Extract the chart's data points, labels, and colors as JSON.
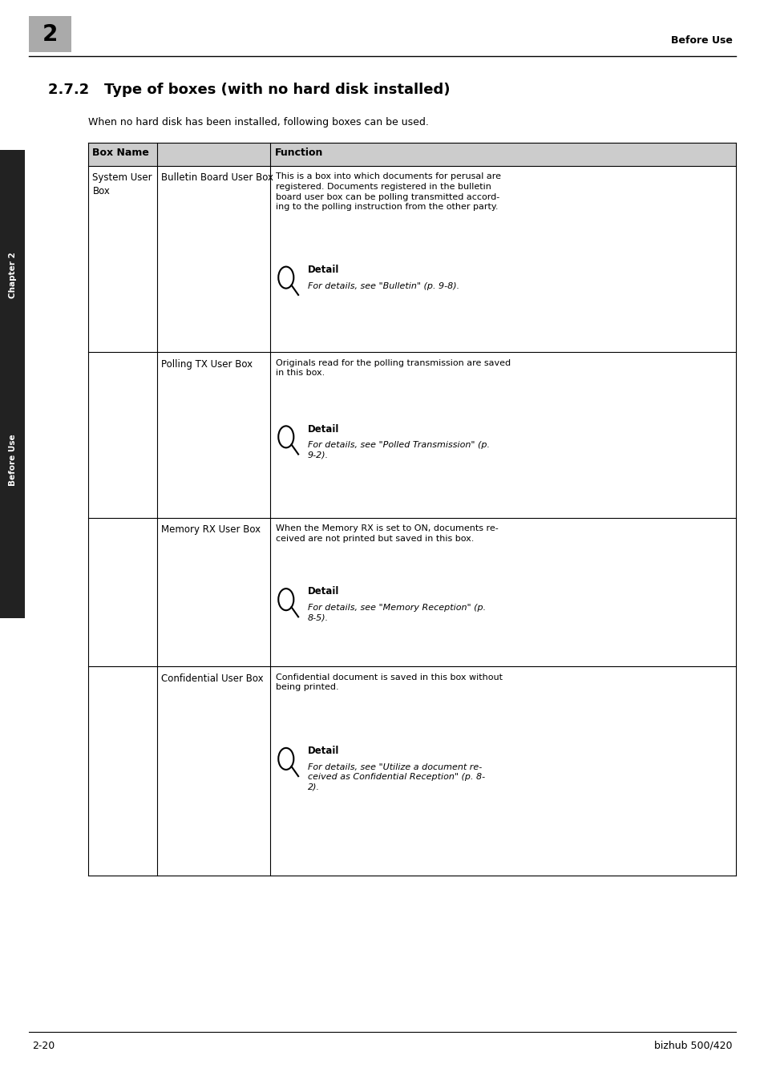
{
  "page_number": "2-20",
  "footer_right": "bizhub 500/420",
  "header_right": "Before Use",
  "chapter_num": "2",
  "section_title": "2.7.2   Type of boxes (with no hard disk installed)",
  "intro_text": "When no hard disk has been installed, following boxes can be used.",
  "col1_header": "Box Name",
  "col2_header": "Function",
  "sidebar_text": "Before Use",
  "sidebar_chapter": "Chapter 2",
  "rows": [
    {
      "col1a": "System User\nBox",
      "col1b": "Bulletin Board User Box",
      "col2_text": "This is a box into which documents for perusal are\nregistered. Documents registered in the bulletin\nboard user box can be polling transmitted accord-\ning to the polling instruction from the other party.",
      "detail_label": "Detail",
      "detail_ref": "For details, see \"Bulletin\" (p. 9-8)."
    },
    {
      "col1a": "",
      "col1b": "Polling TX User Box",
      "col2_text": "Originals read for the polling transmission are saved\nin this box.",
      "detail_label": "Detail",
      "detail_ref": "For details, see \"Polled Transmission\" (p.\n9-2)."
    },
    {
      "col1a": "",
      "col1b": "Memory RX User Box",
      "col2_text": "When the Memory RX is set to ON, documents re-\nceived are not printed but saved in this box.",
      "detail_label": "Detail",
      "detail_ref": "For details, see \"Memory Reception\" (p.\n8-5)."
    },
    {
      "col1a": "",
      "col1b": "Confidential User Box",
      "col2_text": "Confidential document is saved in this box without\nbeing printed.",
      "detail_label": "Detail",
      "detail_ref": "For details, see \"Utilize a document re-\nceived as Confidential Reception\" (p. 8-\n2)."
    }
  ],
  "bg_color": "#ffffff",
  "header_bg": "#aaaaaa",
  "table_header_bg": "#cccccc",
  "sidebar_bg": "#222222"
}
